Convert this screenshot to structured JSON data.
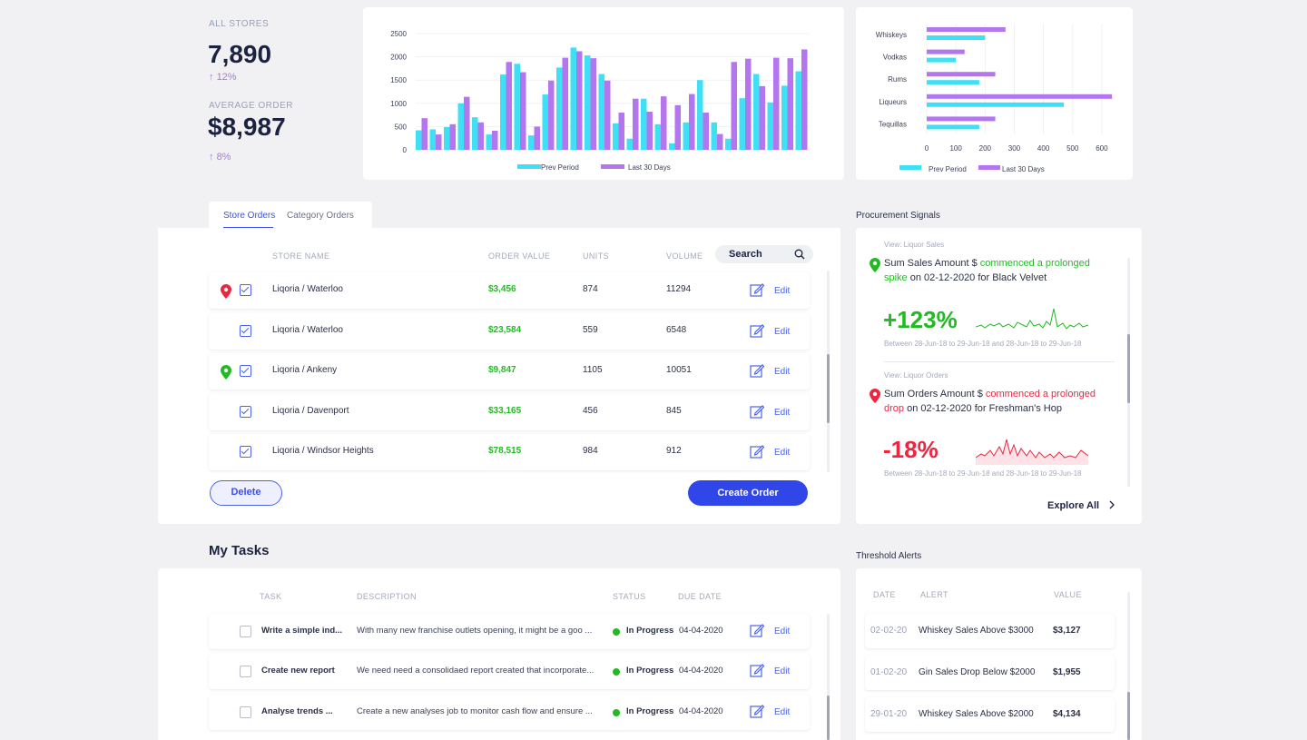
{
  "kpis": {
    "all_stores_label": "ALL STORES",
    "all_stores_value": "7,890",
    "all_stores_delta": "12%",
    "avg_order_label": "AVERAGE ORDER",
    "avg_order_value": "$8,987",
    "avg_order_delta": "8%",
    "delta_arrow": "↑"
  },
  "chart_data": [
    {
      "type": "bar",
      "ylim": [
        0,
        2500
      ],
      "yticks": [
        0,
        500,
        1000,
        1500,
        2000,
        2500
      ],
      "legend_position": "bottom",
      "series": [
        {
          "name": "Prev Period",
          "color": "#3fe0f5",
          "values": [
            420,
            440,
            490,
            1000,
            700,
            330,
            1620,
            1850,
            310,
            1190,
            1770,
            2200,
            2030,
            1630,
            570,
            240,
            1100,
            550,
            140,
            590,
            1500,
            590,
            240,
            1110,
            1630,
            1020,
            1380,
            1690
          ]
        },
        {
          "name": "Last 30 Days",
          "color": "#b476ef",
          "values": [
            680,
            330,
            550,
            1140,
            590,
            410,
            1890,
            1670,
            500,
            1490,
            1980,
            2120,
            1970,
            1490,
            800,
            1100,
            820,
            1150,
            960,
            1200,
            800,
            340,
            1890,
            1960,
            1370,
            1980,
            1970,
            2160
          ]
        }
      ]
    },
    {
      "type": "bar",
      "orientation": "horizontal",
      "categories": [
        "Whiskeys",
        "Vodkas",
        "Rums",
        "Liqueurs",
        "Tequillas"
      ],
      "xlim": [
        0,
        650
      ],
      "xticks": [
        0,
        100,
        200,
        300,
        400,
        500,
        600
      ],
      "legend_position": "bottom",
      "series": [
        {
          "name": "Prev Period",
          "color": "#3fe0f5",
          "values": [
            200,
            100,
            180,
            470,
            180
          ]
        },
        {
          "name": "Last 30 Days",
          "color": "#b476ef",
          "values": [
            270,
            130,
            235,
            635,
            235
          ]
        }
      ]
    }
  ],
  "orders": {
    "tabs": [
      "Store Orders",
      "Category Orders"
    ],
    "columns": {
      "store": "STORE NAME",
      "value": "ORDER VALUE",
      "units": "UNITS",
      "volume": "VOLUME"
    },
    "search_label": "Search",
    "edit_label": "Edit",
    "rows": [
      {
        "pin": "red",
        "store": "Liqoria / Waterloo",
        "value": "$3,456",
        "units": "874",
        "volume": "11294"
      },
      {
        "pin": "",
        "store": "Liqoria / Waterloo",
        "value": "$23,584",
        "units": "559",
        "volume": "6548"
      },
      {
        "pin": "green",
        "store": "Liqoria / Ankeny",
        "value": "$9,847",
        "units": "1105",
        "volume": "10051"
      },
      {
        "pin": "",
        "store": "Liqoria / Davenport",
        "value": "$33,165",
        "units": "456",
        "volume": "845"
      },
      {
        "pin": "",
        "store": "Liqoria / Windsor Heights",
        "value": "$78,515",
        "units": "984",
        "volume": "912"
      }
    ],
    "delete_label": "Delete",
    "create_label": "Create Order"
  },
  "signals": {
    "title": "Procurement Signals",
    "items": [
      {
        "view": "View: Liquor Sales",
        "pre": "Sum Sales Amount $ ",
        "highlight": "commenced a prolonged",
        "line2_highlight": "spike",
        "line2_rest": " on 02-12-2020 for Black Velvet",
        "pct": "+123%",
        "range": "Between 28-Jun-18 to 29-Jun-18 and 28-Jun-18 to 29-Jun-18",
        "color": "#21bb21"
      },
      {
        "view": "View: Liquor Orders",
        "pre": "Sum Orders Amount $ ",
        "highlight": "commenced a prolonged",
        "line2_highlight": "drop",
        "line2_rest": " on 02-12-2020 for Freshman's Hop",
        "pct": "-18%",
        "range": "Between 28-Jun-18 to 29-Jun-18 and 28-Jun-18 to 29-Jun-18",
        "color": "#ee2540"
      }
    ],
    "explore_label": "Explore All"
  },
  "tasks": {
    "title": "My Tasks",
    "columns": {
      "task": "TASK",
      "description": "DESCRIPTION",
      "status": "STATUS",
      "due": "DUE DATE"
    },
    "edit_label": "Edit",
    "rows": [
      {
        "task": "Write a simple ind...",
        "description": "With many new franchise outlets opening, it might be a goo ...",
        "status": "In Progress",
        "due": "04-04-2020"
      },
      {
        "task": "Create new report",
        "description": "We need need a consolidaed report created that incorporate...",
        "status": "In Progress",
        "due": "04-04-2020"
      },
      {
        "task": "Analyse trends ...",
        "description": "Create a new analyses job to monitor cash flow and ensure ...",
        "status": "In Progress",
        "due": "04-04-2020"
      }
    ]
  },
  "alerts": {
    "title": "Threshold Alerts",
    "columns": {
      "date": "DATE",
      "alert": "ALERT",
      "value": "VALUE"
    },
    "rows": [
      {
        "date": "02-02-20",
        "alert": "Whiskey Sales Above $3000",
        "value": "$3,127"
      },
      {
        "date": "01-02-20",
        "alert": "Gin Sales Drop Below $2000",
        "value": "$1,955"
      },
      {
        "date": "29-01-20",
        "alert": "Whiskey Sales Above $2000",
        "value": "$4,134"
      }
    ]
  }
}
